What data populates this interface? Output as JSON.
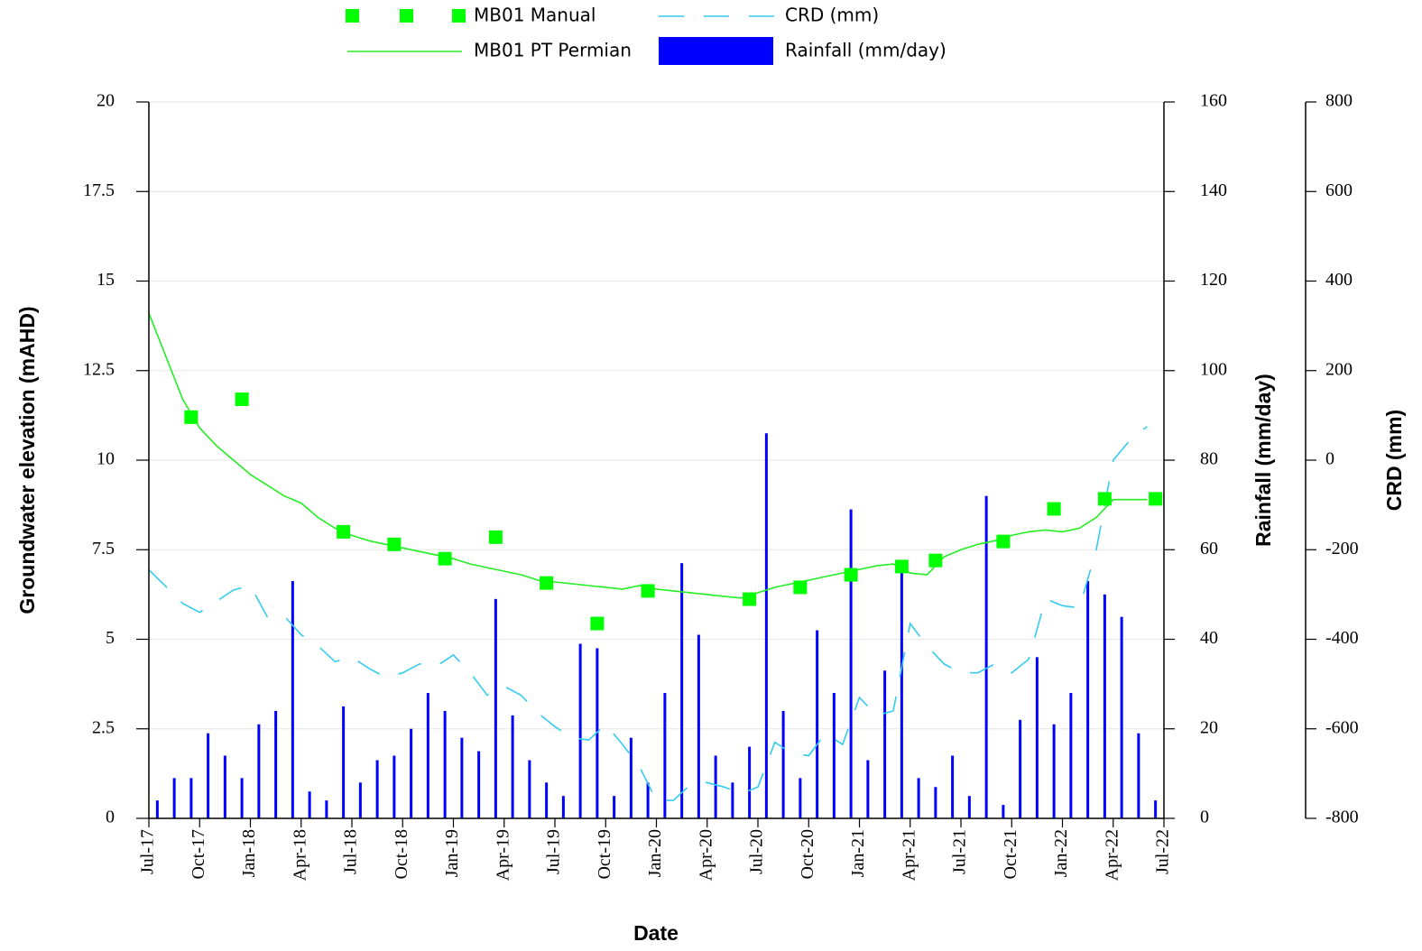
{
  "chart_data": {
    "type": "line",
    "x_label": "Date",
    "y_label": "Groundwater elevation (mAHD)",
    "y2_label": "Rainfall (mm/day)",
    "y3_label": "CRD (mm)",
    "grid": true,
    "xlim": [
      "2017-07",
      "2022-07"
    ],
    "xticks": [
      {
        "value": "2017-07",
        "label": "Jul-17"
      },
      {
        "value": "2017-10",
        "label": "Oct-17"
      },
      {
        "value": "2018-01",
        "label": "Jan-18"
      },
      {
        "value": "2018-04",
        "label": "Apr-18"
      },
      {
        "value": "2018-07",
        "label": "Jul-18"
      },
      {
        "value": "2018-10",
        "label": "Oct-18"
      },
      {
        "value": "2019-01",
        "label": "Jan-19"
      },
      {
        "value": "2019-04",
        "label": "Apr-19"
      },
      {
        "value": "2019-07",
        "label": "Jul-19"
      },
      {
        "value": "2019-10",
        "label": "Oct-19"
      },
      {
        "value": "2020-01",
        "label": "Jan-20"
      },
      {
        "value": "2020-04",
        "label": "Apr-20"
      },
      {
        "value": "2020-07",
        "label": "Jul-20"
      },
      {
        "value": "2020-10",
        "label": "Oct-20"
      },
      {
        "value": "2021-01",
        "label": "Jan-21"
      },
      {
        "value": "2021-04",
        "label": "Apr-21"
      },
      {
        "value": "2021-07",
        "label": "Jul-21"
      },
      {
        "value": "2021-10",
        "label": "Oct-21"
      },
      {
        "value": "2022-01",
        "label": "Jan-22"
      },
      {
        "value": "2022-04",
        "label": "Apr-22"
      },
      {
        "value": "2022-07",
        "label": "Jul-22"
      }
    ],
    "ylim": [
      0,
      20
    ],
    "yticks": [
      0,
      2.5,
      5,
      7.5,
      10,
      12.5,
      15,
      17.5,
      20
    ],
    "y2lim": [
      0,
      160
    ],
    "y2ticks": [
      0,
      20,
      40,
      60,
      80,
      100,
      120,
      140,
      160
    ],
    "y3lim": [
      -800,
      800
    ],
    "y3ticks": [
      -800,
      -600,
      -400,
      -200,
      0,
      200,
      400,
      600,
      800
    ],
    "series": [
      {
        "name": "MB01 Manual",
        "type": "scatter",
        "color": "#00ff00",
        "x": [
          "2017-09",
          "2017-12",
          "2018-06",
          "2018-09",
          "2018-12",
          "2019-03",
          "2019-06",
          "2019-09",
          "2019-12",
          "2020-06",
          "2020-09",
          "2020-12",
          "2021-03",
          "2021-05",
          "2021-09",
          "2021-12",
          "2022-03",
          "2022-06"
        ],
        "values": [
          11.2,
          11.7,
          8.0,
          7.65,
          7.25,
          7.85,
          6.57,
          5.44,
          6.35,
          6.12,
          6.45,
          6.8,
          7.03,
          7.2,
          7.73,
          8.64,
          8.92,
          8.92
        ]
      },
      {
        "name": "CRD (mm)",
        "type": "line",
        "axis": "y3",
        "color": "#33ccee",
        "dashed": true,
        "x": [
          "2017-07",
          "2017-08",
          "2017-09",
          "2017-10",
          "2017-11",
          "2017-12",
          "2018-01",
          "2018-02",
          "2018-03",
          "2018-04",
          "2018-05",
          "2018-06",
          "2018-07",
          "2018-08",
          "2018-09",
          "2018-10",
          "2018-11",
          "2018-12",
          "2019-01",
          "2019-02",
          "2019-03",
          "2019-04",
          "2019-05",
          "2019-06",
          "2019-07",
          "2019-08",
          "2019-09",
          "2019-10",
          "2019-11",
          "2019-12",
          "2020-01",
          "2020-02",
          "2020-03",
          "2020-04",
          "2020-05",
          "2020-06",
          "2020-07",
          "2020-08",
          "2020-09",
          "2020-10",
          "2020-11",
          "2020-12",
          "2021-01",
          "2021-02",
          "2021-03",
          "2021-04",
          "2021-05",
          "2021-06",
          "2021-07",
          "2021-08",
          "2021-09",
          "2021-10",
          "2021-11",
          "2021-12",
          "2022-01",
          "2022-02",
          "2022-03",
          "2022-04",
          "2022-05",
          "2022-06"
        ],
        "values": [
          -245,
          -282,
          -320,
          -340,
          -315,
          -290,
          -280,
          -350,
          -348,
          -390,
          -415,
          -450,
          -440,
          -465,
          -485,
          -475,
          -455,
          -460,
          -435,
          -475,
          -525,
          -505,
          -525,
          -565,
          -595,
          -620,
          -625,
          -590,
          -635,
          -685,
          -760,
          -760,
          -725,
          -720,
          -730,
          -745,
          -730,
          -630,
          -655,
          -660,
          -610,
          -635,
          -530,
          -570,
          -560,
          -365,
          -415,
          -455,
          -475,
          -475,
          -455,
          -475,
          -445,
          -310,
          -325,
          -330,
          -200,
          0,
          45,
          75
        ]
      },
      {
        "name": "MB01 PT Permian",
        "type": "line",
        "color": "#22ee22",
        "x": [
          "2017-07",
          "2017-08",
          "2017-09",
          "2017-10",
          "2017-11",
          "2017-12",
          "2018-01",
          "2018-02",
          "2018-03",
          "2018-04",
          "2018-05",
          "2018-06",
          "2018-07",
          "2018-08",
          "2018-09",
          "2018-10",
          "2018-11",
          "2018-12",
          "2019-01",
          "2019-02",
          "2019-03",
          "2019-04",
          "2019-05",
          "2019-06",
          "2019-07",
          "2019-08",
          "2019-09",
          "2019-10",
          "2019-11",
          "2019-12",
          "2020-01",
          "2020-02",
          "2020-03",
          "2020-04",
          "2020-05",
          "2020-06",
          "2020-07",
          "2020-08",
          "2020-09",
          "2020-10",
          "2020-11",
          "2020-12",
          "2021-01",
          "2021-02",
          "2021-03",
          "2021-04",
          "2021-05",
          "2021-06",
          "2021-07",
          "2021-08",
          "2021-09",
          "2021-10",
          "2021-11",
          "2021-12",
          "2022-01",
          "2022-02",
          "2022-03",
          "2022-04",
          "2022-05",
          "2022-06"
        ],
        "values": [
          14.1,
          12.9,
          11.7,
          10.9,
          10.4,
          10.0,
          9.6,
          9.3,
          9.0,
          8.8,
          8.4,
          8.1,
          7.9,
          7.75,
          7.65,
          7.55,
          7.45,
          7.35,
          7.25,
          7.1,
          7.0,
          6.9,
          6.8,
          6.65,
          6.6,
          6.55,
          6.5,
          6.45,
          6.4,
          6.5,
          6.4,
          6.35,
          6.3,
          6.25,
          6.2,
          6.15,
          6.3,
          6.45,
          6.55,
          6.65,
          6.75,
          6.85,
          6.95,
          7.05,
          7.1,
          6.85,
          6.8,
          7.3,
          7.5,
          7.65,
          7.75,
          7.9,
          8.0,
          8.05,
          8.0,
          8.1,
          8.4,
          8.9,
          8.9,
          8.9
        ]
      },
      {
        "name": "Rainfall (mm/day)",
        "type": "bar",
        "axis": "y2",
        "color": "#0000ff",
        "x": [
          "2017-07",
          "2017-08",
          "2017-09",
          "2017-10",
          "2017-11",
          "2017-12",
          "2018-01",
          "2018-02",
          "2018-03",
          "2018-04",
          "2018-05",
          "2018-06",
          "2018-07",
          "2018-08",
          "2018-09",
          "2018-10",
          "2018-11",
          "2018-12",
          "2019-01",
          "2019-02",
          "2019-03",
          "2019-04",
          "2019-05",
          "2019-06",
          "2019-07",
          "2019-08",
          "2019-09",
          "2019-10",
          "2019-11",
          "2019-12",
          "2020-01",
          "2020-02",
          "2020-03",
          "2020-04",
          "2020-05",
          "2020-06",
          "2020-07",
          "2020-08",
          "2020-09",
          "2020-10",
          "2020-11",
          "2020-12",
          "2021-01",
          "2021-02",
          "2021-03",
          "2021-04",
          "2021-05",
          "2021-06",
          "2021-07",
          "2021-08",
          "2021-09",
          "2021-10",
          "2021-11",
          "2021-12",
          "2022-01",
          "2022-02",
          "2022-03",
          "2022-04",
          "2022-05",
          "2022-06"
        ],
        "values": [
          4,
          9,
          9,
          19,
          14,
          9,
          21,
          24,
          53,
          6,
          4,
          25,
          8,
          13,
          14,
          20,
          28,
          24,
          18,
          15,
          49,
          23,
          13,
          8,
          5,
          39,
          38,
          5,
          18,
          8,
          28,
          57,
          41,
          14,
          8,
          16,
          86,
          24,
          9,
          42,
          28,
          69,
          13,
          33,
          56,
          9,
          7,
          14,
          5,
          72,
          3,
          22,
          36,
          21,
          28,
          53,
          50,
          45,
          19,
          4
        ]
      }
    ]
  }
}
